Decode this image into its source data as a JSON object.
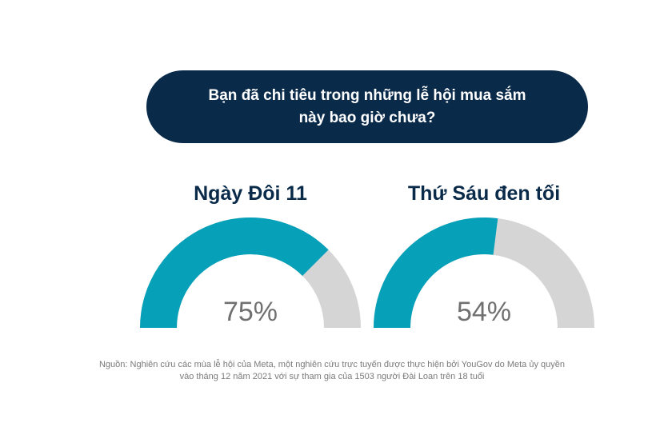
{
  "chart_data": {
    "type": "gauge",
    "title": "Bạn đã chi tiêu trong những lễ hội mua sắm này bao giờ chưa?",
    "unit": "%",
    "series": [
      {
        "name": "Ngày Đôi 11",
        "value": 75,
        "label": "75%"
      },
      {
        "name": "Thứ Sáu đen tối",
        "value": 54,
        "label": "54%"
      }
    ],
    "range": [
      0,
      100
    ],
    "colors": {
      "filled": "#06a0b8",
      "remaining": "#d5d5d5",
      "title": "#0a2a4a",
      "pill": "#0a2a4a"
    }
  },
  "source": {
    "line1": "Nguồn: Nghiên cứu các mùa lễ hội của Meta, một nghiên cứu trực tuyến được thực hiện bởi YouGov do Meta ủy quyền",
    "line2": "vào tháng 12 năm 2021 với sự tham gia của 1503 người Đài Loan trên 18 tuổi"
  }
}
